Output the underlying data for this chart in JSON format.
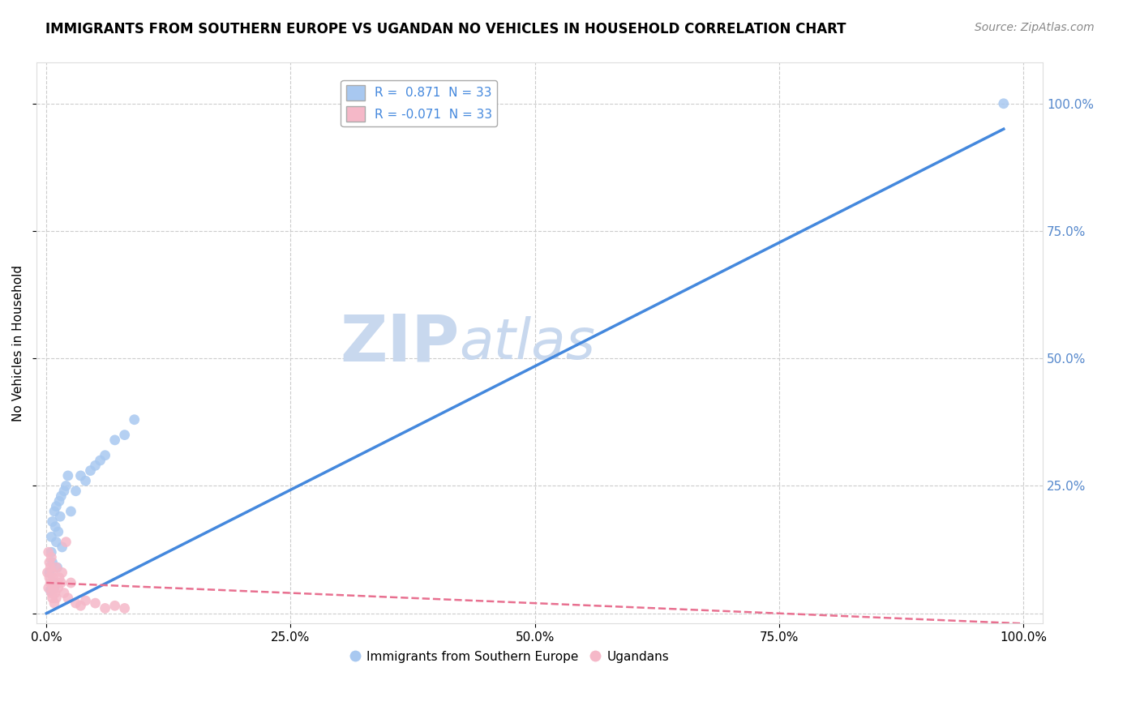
{
  "title": "IMMIGRANTS FROM SOUTHERN EUROPE VS UGANDAN NO VEHICLES IN HOUSEHOLD CORRELATION CHART",
  "source": "Source: ZipAtlas.com",
  "ylabel": "No Vehicles in Household",
  "xlabel": "",
  "xlim": [
    -0.01,
    1.02
  ],
  "ylim": [
    -0.02,
    1.08
  ],
  "xticks": [
    0.0,
    0.25,
    0.5,
    0.75,
    1.0
  ],
  "xtick_labels": [
    "0.0%",
    "25.0%",
    "50.0%",
    "75.0%",
    "100.0%"
  ],
  "yticks": [
    0.0,
    0.25,
    0.5,
    0.75,
    1.0
  ],
  "ytick_labels": [
    "",
    "25.0%",
    "50.0%",
    "75.0%",
    "100.0%"
  ],
  "blue_R": 0.871,
  "blue_N": 33,
  "pink_R": -0.071,
  "pink_N": 33,
  "blue_color": "#a8c8f0",
  "pink_color": "#f5b8c8",
  "blue_line_color": "#4488dd",
  "pink_line_color": "#e87090",
  "watermark_zip": "ZIP",
  "watermark_atlas": "atlas",
  "watermark_color": "#c8d8ee",
  "legend_blue_label": "Immigrants from Southern Europe",
  "legend_pink_label": "Ugandans",
  "blue_x": [
    0.003,
    0.004,
    0.005,
    0.005,
    0.006,
    0.006,
    0.007,
    0.008,
    0.008,
    0.009,
    0.01,
    0.01,
    0.011,
    0.012,
    0.013,
    0.014,
    0.015,
    0.016,
    0.018,
    0.02,
    0.022,
    0.025,
    0.03,
    0.035,
    0.04,
    0.045,
    0.05,
    0.055,
    0.06,
    0.07,
    0.08,
    0.09,
    0.98
  ],
  "blue_y": [
    0.08,
    0.045,
    0.12,
    0.15,
    0.1,
    0.18,
    0.06,
    0.05,
    0.2,
    0.17,
    0.14,
    0.21,
    0.09,
    0.16,
    0.22,
    0.19,
    0.23,
    0.13,
    0.24,
    0.25,
    0.27,
    0.2,
    0.24,
    0.27,
    0.26,
    0.28,
    0.29,
    0.3,
    0.31,
    0.34,
    0.35,
    0.38,
    1.0
  ],
  "pink_x": [
    0.001,
    0.002,
    0.002,
    0.003,
    0.003,
    0.004,
    0.004,
    0.005,
    0.005,
    0.006,
    0.006,
    0.007,
    0.007,
    0.008,
    0.008,
    0.009,
    0.01,
    0.01,
    0.012,
    0.013,
    0.015,
    0.016,
    0.018,
    0.02,
    0.022,
    0.025,
    0.03,
    0.035,
    0.04,
    0.05,
    0.06,
    0.07,
    0.08
  ],
  "pink_y": [
    0.08,
    0.05,
    0.12,
    0.07,
    0.1,
    0.06,
    0.09,
    0.04,
    0.11,
    0.03,
    0.08,
    0.05,
    0.07,
    0.02,
    0.06,
    0.04,
    0.09,
    0.03,
    0.05,
    0.07,
    0.06,
    0.08,
    0.04,
    0.14,
    0.03,
    0.06,
    0.02,
    0.015,
    0.025,
    0.02,
    0.01,
    0.015,
    0.01
  ],
  "blue_line_x0": 0.0,
  "blue_line_y0": 0.0,
  "blue_line_x1": 0.98,
  "blue_line_y1": 0.95,
  "pink_line_x0": 0.0,
  "pink_line_y0": 0.06,
  "pink_line_x1": 1.0,
  "pink_line_y1": -0.02,
  "background_color": "#ffffff",
  "grid_color": "#cccccc",
  "title_fontsize": 12,
  "axis_fontsize": 11,
  "tick_fontsize": 11,
  "legend_fontsize": 11,
  "marker_size": 85,
  "right_ytick_color": "#5588cc"
}
